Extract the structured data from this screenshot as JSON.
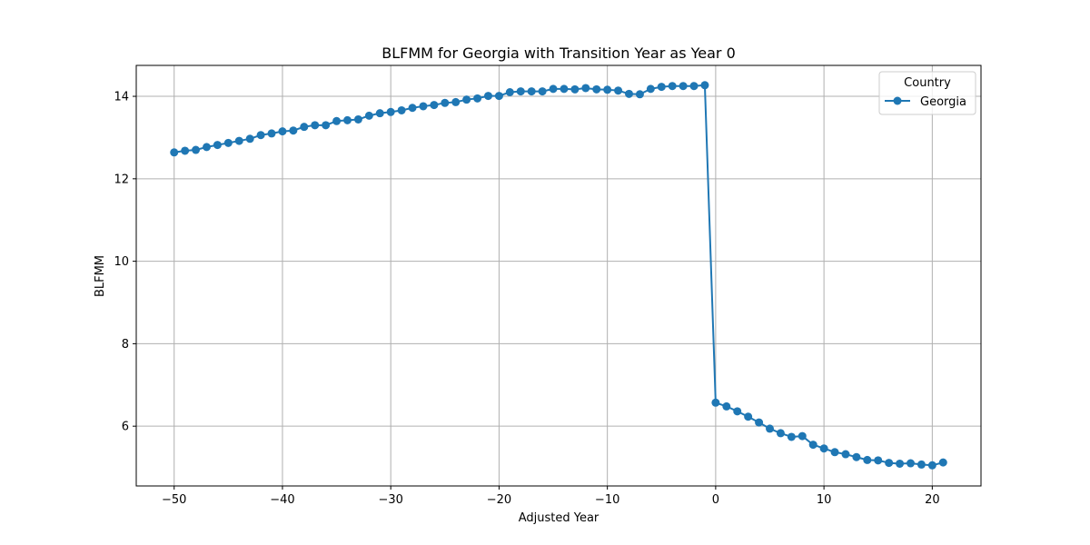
{
  "chart_data": {
    "type": "line",
    "title": "BLFMM for Georgia with Transition Year as Year 0",
    "xlabel": "Adjusted Year",
    "ylabel": "BLFMM",
    "xlim": [
      -53.5,
      24.5
    ],
    "ylim": [
      4.55,
      14.75
    ],
    "xticks": [
      -50,
      -40,
      -30,
      -20,
      -10,
      0,
      10,
      20
    ],
    "xtick_labels": [
      "−50",
      "−40",
      "−30",
      "−20",
      "−10",
      "0",
      "10",
      "20"
    ],
    "yticks": [
      6,
      8,
      10,
      12,
      14
    ],
    "ytick_labels": [
      "6",
      "8",
      "10",
      "12",
      "14"
    ],
    "grid": true,
    "legend": {
      "title": "Country",
      "placement": "top-right"
    },
    "series": [
      {
        "name": "Georgia",
        "color": "#1f77b4",
        "marker": "circle",
        "x": [
          -50,
          -49,
          -48,
          -47,
          -46,
          -45,
          -44,
          -43,
          -42,
          -41,
          -40,
          -39,
          -38,
          -37,
          -36,
          -35,
          -34,
          -33,
          -32,
          -31,
          -30,
          -29,
          -28,
          -27,
          -26,
          -25,
          -24,
          -23,
          -22,
          -21,
          -20,
          -19,
          -18,
          -17,
          -16,
          -15,
          -14,
          -13,
          -12,
          -11,
          -10,
          -9,
          -8,
          -7,
          -6,
          -5,
          -4,
          -3,
          -2,
          -1,
          0,
          1,
          2,
          3,
          4,
          5,
          6,
          7,
          8,
          9,
          10,
          11,
          12,
          13,
          14,
          15,
          16,
          17,
          18,
          19,
          20,
          21
        ],
        "y": [
          12.64,
          12.68,
          12.7,
          12.77,
          12.82,
          12.87,
          12.92,
          12.97,
          13.06,
          13.1,
          13.15,
          13.17,
          13.26,
          13.3,
          13.3,
          13.4,
          13.42,
          13.44,
          13.53,
          13.59,
          13.62,
          13.66,
          13.72,
          13.76,
          13.79,
          13.84,
          13.86,
          13.92,
          13.95,
          14.01,
          14.01,
          14.1,
          14.12,
          14.12,
          14.12,
          14.18,
          14.18,
          14.17,
          14.2,
          14.17,
          14.16,
          14.14,
          14.06,
          14.05,
          14.18,
          14.23,
          14.25,
          14.25,
          14.25,
          14.27,
          6.57,
          6.48,
          6.36,
          6.23,
          6.09,
          5.94,
          5.83,
          5.74,
          5.76,
          5.55,
          5.46,
          5.37,
          5.32,
          5.25,
          5.18,
          5.17,
          5.11,
          5.09,
          5.1,
          5.07,
          5.05,
          5.12
        ]
      }
    ]
  }
}
